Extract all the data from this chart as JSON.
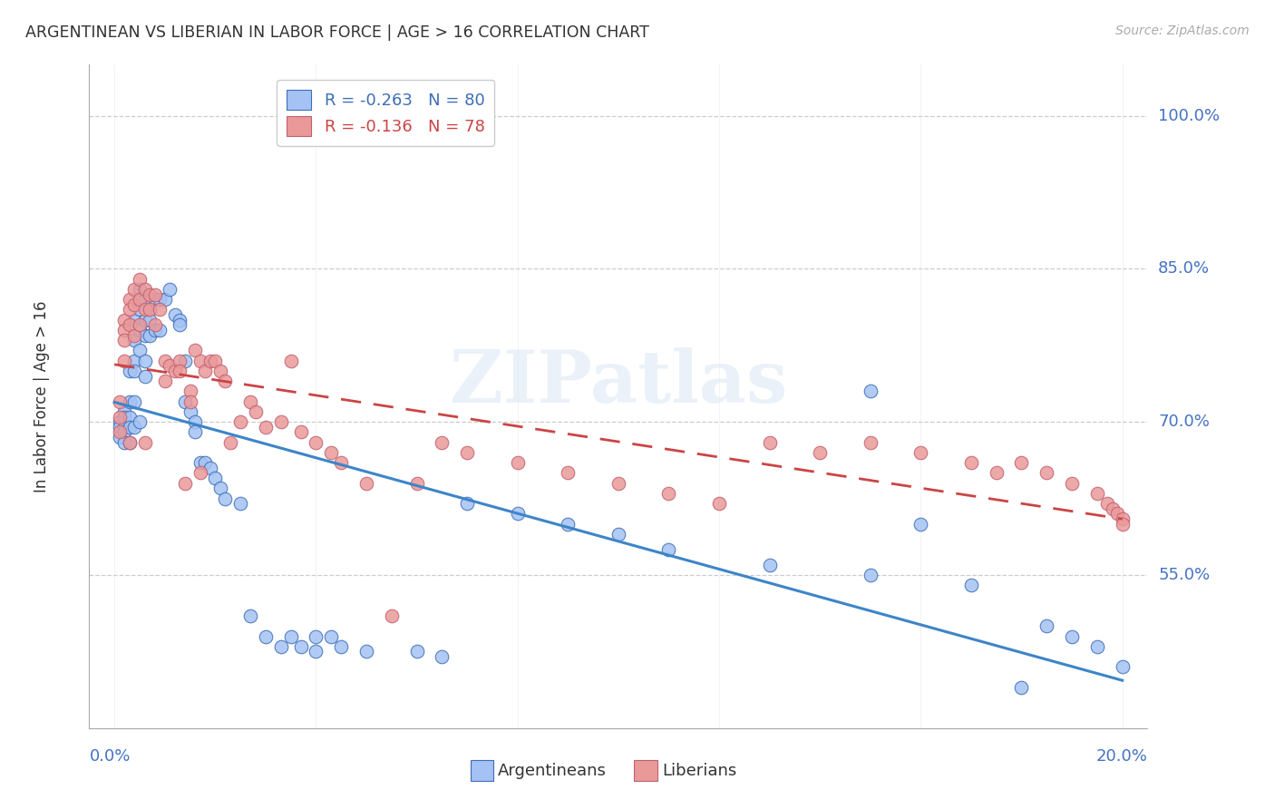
{
  "title": "ARGENTINEAN VS LIBERIAN IN LABOR FORCE | AGE > 16 CORRELATION CHART",
  "source": "Source: ZipAtlas.com",
  "ylabel": "In Labor Force | Age > 16",
  "watermark": "ZIPatlas",
  "blue_color": "#a4c2f4",
  "blue_edge": "#3d6eb5",
  "pink_color": "#ea9999",
  "pink_edge": "#c06070",
  "regression_blue": "#3d85c8",
  "regression_pink": "#cc4444",
  "legend_blue_text": "R = -0.263   N = 80",
  "legend_pink_text": "R = -0.136   N = 78",
  "bottom_label_blue": "Argentineans",
  "bottom_label_pink": "Liberians",
  "ytick_vals": [
    1.0,
    0.85,
    0.7,
    0.55
  ],
  "ytick_labels": [
    "100.0%",
    "85.0%",
    "70.0%",
    "55.0%"
  ],
  "xlim": [
    0.0,
    0.2
  ],
  "ylim": [
    0.4,
    1.05
  ],
  "blue_x": [
    0.001,
    0.001,
    0.001,
    0.002,
    0.002,
    0.002,
    0.002,
    0.002,
    0.003,
    0.003,
    0.003,
    0.003,
    0.003,
    0.004,
    0.004,
    0.004,
    0.004,
    0.004,
    0.004,
    0.005,
    0.005,
    0.005,
    0.005,
    0.005,
    0.006,
    0.006,
    0.006,
    0.006,
    0.006,
    0.007,
    0.007,
    0.007,
    0.008,
    0.008,
    0.009,
    0.009,
    0.01,
    0.011,
    0.012,
    0.013,
    0.013,
    0.014,
    0.014,
    0.015,
    0.016,
    0.016,
    0.017,
    0.018,
    0.019,
    0.02,
    0.021,
    0.022,
    0.025,
    0.027,
    0.03,
    0.033,
    0.035,
    0.037,
    0.04,
    0.04,
    0.043,
    0.045,
    0.05,
    0.06,
    0.065,
    0.07,
    0.08,
    0.09,
    0.1,
    0.11,
    0.13,
    0.15,
    0.15,
    0.16,
    0.17,
    0.18,
    0.185,
    0.19,
    0.195,
    0.2
  ],
  "blue_y": [
    0.7,
    0.695,
    0.685,
    0.71,
    0.705,
    0.695,
    0.69,
    0.68,
    0.75,
    0.72,
    0.705,
    0.695,
    0.68,
    0.8,
    0.78,
    0.76,
    0.75,
    0.72,
    0.695,
    0.83,
    0.81,
    0.79,
    0.77,
    0.7,
    0.82,
    0.8,
    0.785,
    0.76,
    0.745,
    0.81,
    0.8,
    0.785,
    0.82,
    0.79,
    0.82,
    0.79,
    0.82,
    0.83,
    0.805,
    0.8,
    0.795,
    0.76,
    0.72,
    0.71,
    0.7,
    0.69,
    0.66,
    0.66,
    0.655,
    0.645,
    0.635,
    0.625,
    0.62,
    0.51,
    0.49,
    0.48,
    0.49,
    0.48,
    0.49,
    0.475,
    0.49,
    0.48,
    0.475,
    0.475,
    0.47,
    0.62,
    0.61,
    0.6,
    0.59,
    0.575,
    0.56,
    0.55,
    0.73,
    0.6,
    0.54,
    0.44,
    0.5,
    0.49,
    0.48,
    0.46
  ],
  "pink_x": [
    0.001,
    0.001,
    0.001,
    0.002,
    0.002,
    0.002,
    0.002,
    0.003,
    0.003,
    0.003,
    0.003,
    0.004,
    0.004,
    0.004,
    0.005,
    0.005,
    0.005,
    0.006,
    0.006,
    0.006,
    0.007,
    0.007,
    0.008,
    0.008,
    0.009,
    0.01,
    0.01,
    0.011,
    0.012,
    0.013,
    0.013,
    0.014,
    0.015,
    0.015,
    0.016,
    0.017,
    0.017,
    0.018,
    0.019,
    0.02,
    0.021,
    0.022,
    0.023,
    0.025,
    0.027,
    0.028,
    0.03,
    0.033,
    0.035,
    0.037,
    0.04,
    0.043,
    0.045,
    0.05,
    0.055,
    0.06,
    0.065,
    0.07,
    0.08,
    0.09,
    0.1,
    0.11,
    0.12,
    0.13,
    0.14,
    0.15,
    0.16,
    0.17,
    0.175,
    0.18,
    0.185,
    0.19,
    0.195,
    0.197,
    0.198,
    0.199,
    0.2,
    0.2
  ],
  "pink_y": [
    0.72,
    0.705,
    0.69,
    0.8,
    0.79,
    0.78,
    0.76,
    0.82,
    0.81,
    0.795,
    0.68,
    0.83,
    0.815,
    0.785,
    0.84,
    0.82,
    0.795,
    0.83,
    0.81,
    0.68,
    0.825,
    0.81,
    0.825,
    0.795,
    0.81,
    0.76,
    0.74,
    0.755,
    0.75,
    0.76,
    0.75,
    0.64,
    0.73,
    0.72,
    0.77,
    0.76,
    0.65,
    0.75,
    0.76,
    0.76,
    0.75,
    0.74,
    0.68,
    0.7,
    0.72,
    0.71,
    0.695,
    0.7,
    0.76,
    0.69,
    0.68,
    0.67,
    0.66,
    0.64,
    0.51,
    0.64,
    0.68,
    0.67,
    0.66,
    0.65,
    0.64,
    0.63,
    0.62,
    0.68,
    0.67,
    0.68,
    0.67,
    0.66,
    0.65,
    0.66,
    0.65,
    0.64,
    0.63,
    0.62,
    0.615,
    0.61,
    0.605,
    0.6
  ]
}
